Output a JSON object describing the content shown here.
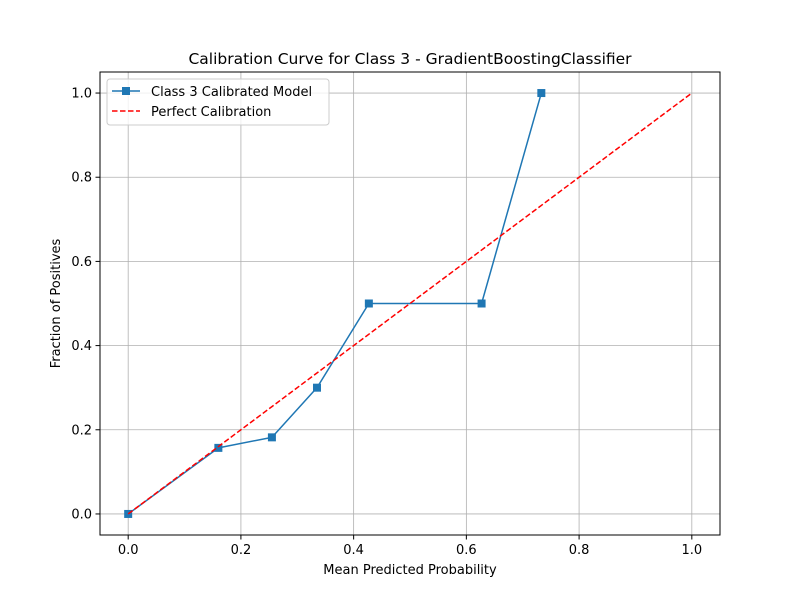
{
  "chart_data": {
    "type": "line",
    "title": "Calibration Curve for Class 3 - GradientBoostingClassifier",
    "xlabel": "Mean Predicted Probability",
    "ylabel": "Fraction of Positives",
    "xlim": [
      -0.05,
      1.05
    ],
    "ylim": [
      -0.05,
      1.05
    ],
    "xticks": [
      0.0,
      0.2,
      0.4,
      0.6,
      0.8,
      1.0
    ],
    "yticks": [
      0.0,
      0.2,
      0.4,
      0.6,
      0.8,
      1.0
    ],
    "xtick_labels": [
      "0.0",
      "0.2",
      "0.4",
      "0.6",
      "0.8",
      "1.0"
    ],
    "ytick_labels": [
      "0.0",
      "0.2",
      "0.4",
      "0.6",
      "0.8",
      "1.0"
    ],
    "grid": true,
    "legend_position": "top-left",
    "series": [
      {
        "name": "Class 3 Calibrated Model",
        "style": "solid",
        "marker": "square",
        "color": "#1f77b4",
        "x": [
          0.0,
          0.16,
          0.255,
          0.335,
          0.427,
          0.627,
          0.733
        ],
        "y": [
          0.0,
          0.157,
          0.182,
          0.3,
          0.5,
          0.5,
          1.0
        ]
      },
      {
        "name": "Perfect Calibration",
        "style": "dashed",
        "marker": "none",
        "color": "#ff0000",
        "x": [
          0.0,
          1.0
        ],
        "y": [
          0.0,
          1.0
        ]
      }
    ]
  }
}
